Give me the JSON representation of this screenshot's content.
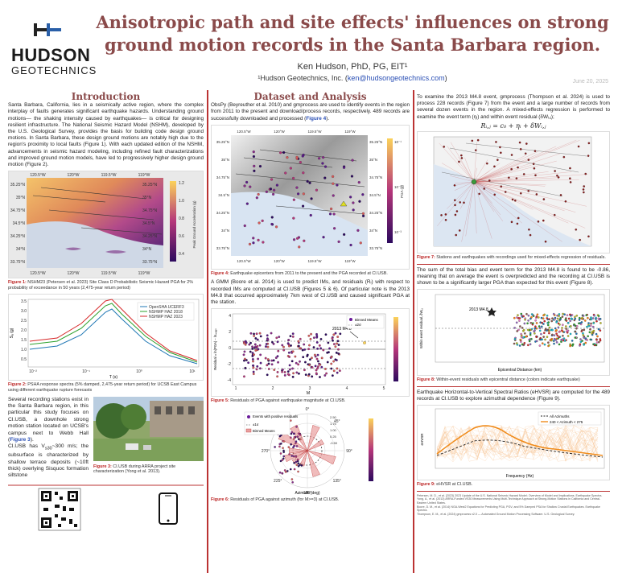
{
  "header": {
    "logo_line1": "HUDSON",
    "logo_line2": "GEOTECHNICS",
    "title": "Anisotropic path and site effects' influences on strong ground motion records in the Santa Barbara region.",
    "author": "Ken Hudson, PhD, PG, EIT¹",
    "affiliation": "¹Hudson Geotechnics, Inc. (",
    "email": "ken@hudsongeotechnics.com",
    "affiliation_close": ")",
    "date": "June 20, 2025"
  },
  "intro": {
    "heading": "Introduction",
    "p1": "Santa Barbara, California, lies in a seismically active region, where the complex interplay of faults generates significant earthquake hazards. Understanding ground motions— the shaking intensity caused by earthquakes— is critical for designing resilient infrastructure. The National Seismic Hazard Model (NSHM), developed by the U.S. Geological Survey, provides the basis for building code design ground motions. In Santa Barbara, these design ground motions are notably high due to the region's proximity to local faults (Figure 1). With each updated edition of the NSHM, advancements in seismic hazard modeling, including refined fault characterizations and improved ground motion models, have led to progressively higher design ground motion (Figure 2).",
    "fig1_caption_label": "Figure 1:",
    "fig1_caption": "NSHM23 (Petersen et al. 2023) Site Class D Probabilistic Seismic Hazard PGA for 2% probability of exceedance in 50 years (2,475-year return period)",
    "fig1_lon_ticks": [
      "120.5°W",
      "120°W",
      "119.5°W",
      "119°W"
    ],
    "fig1_lat_ticks": [
      "35.25°N",
      "35°N",
      "34.75°N",
      "34.5°N",
      "34.25°N",
      "34°N",
      "33.75°N"
    ],
    "fig1_colorbar_ticks": [
      "1.2",
      "1.0",
      "0.8",
      "0.6",
      "0.4"
    ],
    "fig1_colorbar_label": "Peak Ground Acceleration (g)",
    "fig2_caption_label": "Figure 2:",
    "fig2_caption": "PSHA response spectra (5% damped, 2,475-year return period) for UCSB East Campus using different earthquake rupture forecasts",
    "fig2_legend": [
      "OpenSHA UCERF3",
      "NSHMP HAZ 2018",
      "NSHMP HAZ 2023"
    ],
    "fig2_xlabel": "T (s)",
    "fig2_ylabel": "Sₐ (g)",
    "fig2_xticks": [
      "10⁻²",
      "10⁻¹",
      "10⁰",
      "10¹"
    ],
    "fig2_yticks": [
      "3.5",
      "3.0",
      "2.5",
      "2.0",
      "1.5",
      "1.0",
      "0.5"
    ],
    "p2_html_parts": [
      "Several recording stations exist in the Santa Barbara region, in this particular this study focuses on CI.USB, a downhole strong motion station located on UCSB's campus next to Webb Hall (",
      "Figure 3",
      ").",
      "CI.USB has V",
      "s30",
      "~300 m/s; the subsurface is characterized by shallow terrace deposits (~10ft thick) overlying Sisquoc formation siltstone"
    ],
    "fig3_caption_label": "Figure 3:",
    "fig3_caption": "CI.USB during ARRA project site characterization (Yong et al. 2013)."
  },
  "data": {
    "heading": "Dataset and Analysis",
    "p1a": "ObsPy (Beyreuther et al. 2010) and gmprocess are used to identify events in the region from 2011 to the present and download/process records, respectively. 489 records are successfully downloaded and processed (",
    "p1_ref": "Figure 4",
    "p1b": ").",
    "fig4_lon_ticks": [
      "120.5°W",
      "120°W",
      "119.5°W",
      "119°W"
    ],
    "fig4_lat_ticks": [
      "35.25°N",
      "35°N",
      "34.75°N",
      "34.5°N",
      "34.25°N",
      "34°N",
      "33.75°N"
    ],
    "fig4_colorbar_label": "PGA (g)",
    "fig4_colorbar_ticks": [
      "10⁻¹",
      "10⁻²",
      "10⁻³"
    ],
    "fig4_caption_label": "Figure 4:",
    "fig4_caption": "Earthquake epicenters from 2011 to the present and the PGA recorded at CI.USB.",
    "p2": "A GMM (Boore et al. 2014) is used to predict IMs, and residuals (Rᵢ) with respect to recorded IMs are computed at CI.USB (Figures 5 & 6). Of particular note is the 2013 M4.8 that occurred approximately 7km west of CI.USB and caused significant PGA at the station.",
    "fig5_legend": [
      "Binned Means",
      "±2σ"
    ],
    "fig5_annotation": "2013 M4.8",
    "fig5_xlabel": "M",
    "fig5_ylabel": "Residual = ln(PGA) − lnₘₑₐₙ",
    "fig5_xticks": [
      "1",
      "2",
      "3",
      "4",
      "5"
    ],
    "fig5_yticks": [
      "4",
      "2",
      "0",
      "-2",
      "-4"
    ],
    "fig5_caption_label": "Figure 5:",
    "fig5_caption": "Residuals of PGA against earthquake magnitude at CI.USB.",
    "fig6_legend": [
      "Events with positive residuals",
      "±1σ",
      "Binned Means"
    ],
    "fig6_angles": [
      "0°",
      "45°",
      "90°",
      "135°",
      "180°",
      "225°",
      "270°",
      "315°"
    ],
    "fig6_radii": [
      "2.50",
      "1.75",
      "1.00",
      "0.25",
      "-0.50"
    ],
    "fig6_xlabel": "Azimuth (deg)",
    "fig6_caption_label": "Figure 6:",
    "fig6_caption": "Residuals of PGA against azimuth (for M>=3) at CI.USB."
  },
  "right": {
    "p1": "To examine the 2013 M4.8 event, gmprocess (Thompson et al. 2024) is used to process 228 records (Figure 7) from the event and a large number of records from several dozen events in the region. A mixed-effects regression is performed to examine the event term (ηᵢ) and within event residual (δWᵢ,ⱼ);",
    "equation": "Rᵢ,ⱼ = c₀ + ηᵢ + δWᵢ,ⱼ",
    "fig7_caption_label": "Figure 7:",
    "fig7_caption": "Stations and earthquakes with recordings used for mixed-effects regression of residuals.",
    "p2": "The sum of the total bias and event term for the 2013 M4.8 is found to be -0.86, meaning that on average the event is overpredicted and the recording at CI.USB is shown to be a significantly larger PGA than expected for this event (Figure 8).",
    "fig8_annotation": "2013 M4.8",
    "fig8_xlabel": "Epicentral Distance (km)",
    "fig8_ylabel": "Within event residual, δWᵢ,ⱼ",
    "fig8_caption_label": "Figure 8:",
    "fig8_caption": "Within-event residuals with epicentral distance (colors indicate earthquake)",
    "p3": "Earthquake Horizontal-to-Vertical Spectral Ratios (eHVSR) are computed for the 489 records at CI.USB to explore azimuthal dependence (Figure 9).",
    "fig9_legend": [
      "All Azimuths",
      "240 < Azimuth < 275"
    ],
    "fig9_xlabel": "Frequency (Hz)",
    "fig9_ylabel": "eHVSR",
    "fig9_caption_label": "Figure 9:",
    "fig9_caption": "eHVSR at CI.USB.",
    "references": [
      "Petersen, M. D., et al. (2023) 2023 Update of the U.S. National Seismic Hazard Model; Overview of Model and Implications. Earthquake Spectra.",
      "Yong, A., et al. (2013) ARRA-Funded VS30 Measurements Using Multi-Technique Approach at Strong-Motion Stations in California and Central-Eastern United States.",
      "Boore, D. M., et al. (2014) NGA-West2 Equations for Predicting PGA, PGV, and 5% Damped PSA for Shallow Crustal Earthquakes. Earthquake Spectra.",
      "Thompson, E. M., et al. (2024) gmprocess v2.0 — Automated Ground Motion Processing Software. U.S. Geological Survey."
    ]
  },
  "colors": {
    "title": "#8a4a4a",
    "accent": "#b22222",
    "link": "#2a4fb5",
    "divider": "#bb3333"
  }
}
